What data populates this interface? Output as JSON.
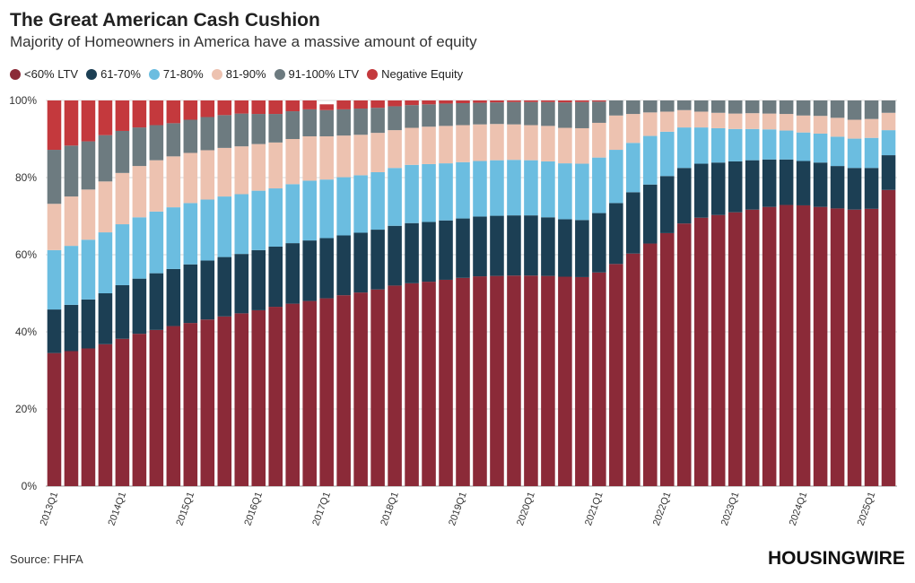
{
  "header": {
    "title": "The Great American Cash Cushion",
    "subtitle": "Majority of Homeowners in America have a massive amount of equity"
  },
  "footer": {
    "source": "Source: FHFA",
    "brand": "HOUSINGWIRE"
  },
  "chart_data": {
    "type": "bar",
    "stacked": true,
    "legend_position": "top-left",
    "grid": true,
    "xlabel": "",
    "ylabel": "",
    "ylim": [
      0,
      100
    ],
    "yticks": [
      "0%",
      "20%",
      "40%",
      "60%",
      "80%",
      "100%"
    ],
    "categories": [
      "2013Q1",
      "2013Q2",
      "2013Q3",
      "2013Q4",
      "2014Q1",
      "2014Q2",
      "2014Q3",
      "2014Q4",
      "2015Q1",
      "2015Q2",
      "2015Q3",
      "2015Q4",
      "2016Q1",
      "2016Q2",
      "2016Q3",
      "2016Q4",
      "2017Q1",
      "2017Q2",
      "2017Q3",
      "2017Q4",
      "2018Q1",
      "2018Q2",
      "2018Q3",
      "2018Q4",
      "2019Q1",
      "2019Q2",
      "2019Q3",
      "2019Q4",
      "2020Q1",
      "2020Q2",
      "2020Q3",
      "2020Q4",
      "2021Q1",
      "2021Q2",
      "2021Q3",
      "2021Q4",
      "2022Q1",
      "2022Q2",
      "2022Q3",
      "2022Q4",
      "2023Q1",
      "2023Q2",
      "2023Q3",
      "2023Q4",
      "2024Q1",
      "2024Q2",
      "2024Q3",
      "2024Q4",
      "2025Q1",
      "2025Q2"
    ],
    "xtick_labels_shown": [
      "2013Q1",
      "2014Q1",
      "2015Q1",
      "2016Q1",
      "2017Q1",
      "2018Q1",
      "2019Q1",
      "2020Q1",
      "2021Q1",
      "2022Q1",
      "2023Q1",
      "2024Q1",
      "2025Q1"
    ],
    "series": [
      {
        "name": "<60% LTV",
        "color": "#8B2A38",
        "values": [
          34.5,
          35.0,
          35.7,
          36.8,
          38.2,
          39.5,
          40.5,
          41.5,
          42.3,
          43.2,
          44.0,
          44.8,
          45.6,
          46.5,
          47.3,
          48.0,
          48.7,
          49.5,
          50.2,
          51.0,
          52.0,
          52.6,
          53.0,
          53.5,
          54.0,
          54.4,
          54.5,
          54.6,
          54.6,
          54.5,
          54.3,
          54.2,
          55.4,
          57.6,
          60.3,
          62.9,
          65.6,
          68.1,
          69.6,
          70.3,
          71.0,
          71.7,
          72.4,
          72.9,
          72.8,
          72.4,
          72.0,
          71.7,
          71.9,
          76.8
        ]
      },
      {
        "name": "61-70%",
        "color": "#1C3F54",
        "values": [
          11.3,
          12.0,
          12.7,
          13.2,
          13.9,
          14.3,
          14.7,
          14.8,
          15.2,
          15.3,
          15.4,
          15.4,
          15.6,
          15.6,
          15.7,
          15.7,
          15.6,
          15.5,
          15.5,
          15.5,
          15.5,
          15.6,
          15.5,
          15.4,
          15.4,
          15.5,
          15.6,
          15.6,
          15.6,
          15.2,
          14.9,
          14.8,
          15.4,
          15.8,
          15.9,
          15.3,
          14.8,
          14.4,
          14.0,
          13.6,
          13.2,
          12.8,
          12.3,
          11.8,
          11.5,
          11.5,
          11.0,
          10.8,
          10.6,
          9.0
        ]
      },
      {
        "name": "71-80%",
        "color": "#6BBDE0",
        "values": [
          15.4,
          15.3,
          15.5,
          15.8,
          15.8,
          15.9,
          16.0,
          16.0,
          15.9,
          15.8,
          15.7,
          15.5,
          15.4,
          15.1,
          15.3,
          15.5,
          15.2,
          15.1,
          14.9,
          14.9,
          15.0,
          15.1,
          15.0,
          14.8,
          14.6,
          14.4,
          14.4,
          14.4,
          14.3,
          14.5,
          14.5,
          14.6,
          14.4,
          13.8,
          12.8,
          12.6,
          11.5,
          10.5,
          9.4,
          8.9,
          8.4,
          8.1,
          7.8,
          7.5,
          7.4,
          7.5,
          7.6,
          7.6,
          7.8,
          6.5
        ]
      },
      {
        "name": "81-90%",
        "color": "#EDC2B0",
        "values": [
          12.0,
          12.8,
          13.0,
          13.2,
          13.3,
          13.3,
          13.3,
          13.2,
          13.0,
          12.8,
          12.6,
          12.4,
          12.1,
          11.9,
          11.7,
          11.5,
          11.2,
          10.8,
          10.5,
          10.2,
          9.8,
          9.6,
          9.7,
          9.7,
          9.6,
          9.5,
          9.4,
          9.2,
          9.1,
          9.2,
          9.2,
          9.2,
          9.0,
          8.9,
          7.5,
          6.1,
          5.2,
          4.5,
          4.1,
          4.0,
          4.0,
          4.1,
          4.1,
          4.3,
          4.4,
          4.6,
          4.9,
          4.9,
          4.9,
          4.5
        ]
      },
      {
        "name": "91-100% LTV",
        "color": "#6D7B80",
        "values": [
          14.0,
          13.2,
          12.5,
          12.0,
          10.9,
          10.0,
          9.1,
          8.6,
          8.6,
          8.6,
          8.5,
          8.5,
          7.8,
          7.4,
          7.2,
          7.0,
          6.8,
          6.8,
          6.8,
          6.5,
          6.2,
          5.9,
          5.8,
          5.8,
          5.7,
          5.6,
          5.6,
          5.8,
          6.0,
          6.2,
          6.6,
          6.8,
          5.5,
          3.9,
          3.5,
          3.1,
          2.9,
          2.5,
          2.9,
          3.2,
          3.4,
          3.3,
          3.4,
          3.5,
          3.9,
          4.0,
          4.5,
          5.0,
          4.8,
          3.2
        ]
      },
      {
        "name": "Negative Equity",
        "color": "#C4393D",
        "values": [
          12.8,
          11.7,
          10.6,
          9.0,
          7.9,
          7.0,
          6.4,
          5.9,
          5.0,
          4.3,
          3.8,
          3.4,
          3.5,
          3.5,
          2.8,
          2.3,
          1.5,
          2.3,
          2.1,
          1.9,
          1.5,
          1.2,
          1.0,
          0.8,
          0.7,
          0.6,
          0.5,
          0.4,
          0.4,
          0.4,
          0.5,
          0.4,
          0.3,
          0.0,
          0.0,
          0.0,
          0.0,
          0.0,
          0.0,
          0.0,
          0.0,
          0.0,
          0.0,
          0.0,
          0.0,
          0.0,
          0.0,
          0.0,
          0.0,
          0.0
        ]
      }
    ]
  }
}
